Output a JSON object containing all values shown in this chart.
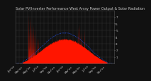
{
  "title": "Solar PV/Inverter Performance West Array Power Output & Solar Radiation",
  "bg_color": "#111111",
  "plot_bg_color": "#111111",
  "grid_color": "#444444",
  "red_color": "#ff1500",
  "blue_color": "#2255ff",
  "ylim": [
    0,
    8
  ],
  "ytick_labels": [
    "1",
    "2",
    "3",
    "4",
    "5",
    "6",
    "7"
  ],
  "ytick_vals": [
    1,
    2,
    3,
    4,
    5,
    6,
    7
  ],
  "n_points": 700,
  "title_fontsize": 3.5,
  "tick_fontsize": 3.0
}
